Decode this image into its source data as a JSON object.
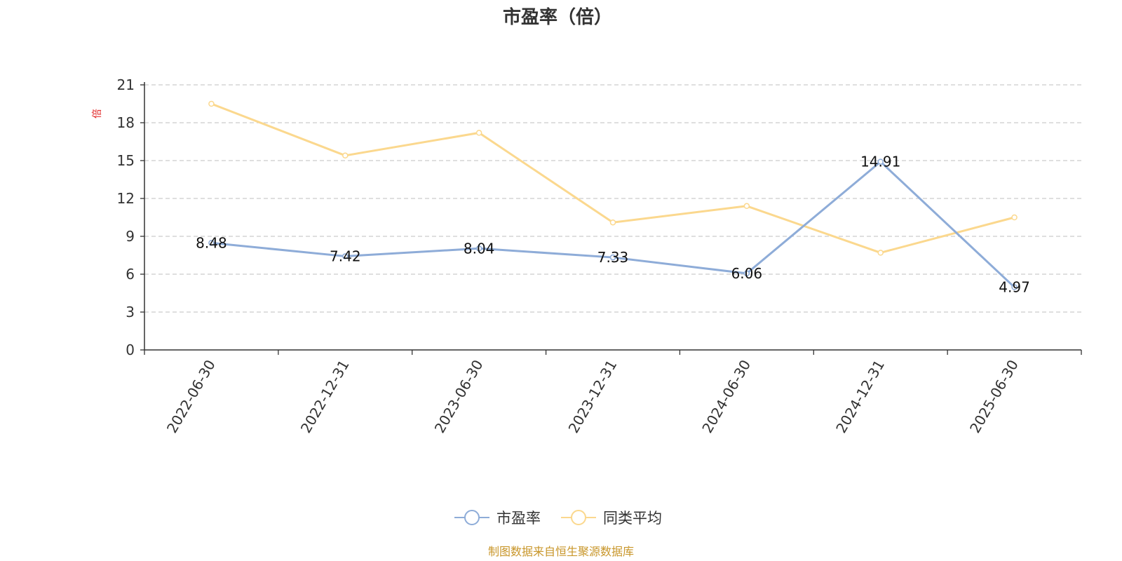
{
  "chart_data": {
    "type": "line",
    "title": "市盈率（倍）",
    "ylabel": "倍",
    "unit_color": "#e02020",
    "ylim": [
      0,
      21
    ],
    "yticks": [
      0,
      3,
      6,
      9,
      12,
      15,
      18,
      21
    ],
    "grid": true,
    "categories": [
      "2022-06-30",
      "2022-12-31",
      "2023-06-30",
      "2023-12-31",
      "2024-06-30",
      "2024-12-31",
      "2025-06-30"
    ],
    "series": [
      {
        "name": "市盈率",
        "color": "#8eacd8",
        "values": [
          8.48,
          7.42,
          8.04,
          7.33,
          6.06,
          14.91,
          4.97
        ],
        "labels": [
          "8.48",
          "7.42",
          "8.04",
          "7.33",
          "6.06",
          "14.91",
          "4.97"
        ],
        "show_labels": true
      },
      {
        "name": "同类平均",
        "color": "#fbd88e",
        "values": [
          19.5,
          15.4,
          17.2,
          10.1,
          11.4,
          7.7,
          10.5
        ],
        "show_labels": false
      }
    ],
    "legend_position": "bottom-center"
  },
  "footer": {
    "source_text": "制图数据来自恒生聚源数据库",
    "source_color": "#c8962a"
  }
}
